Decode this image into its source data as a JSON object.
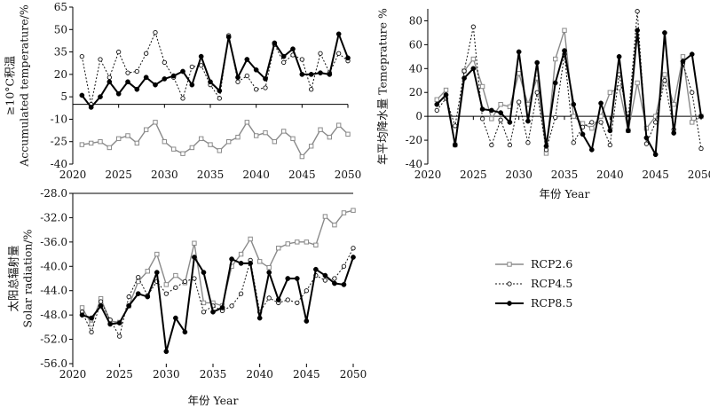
{
  "chart_data": [
    {
      "id": "accumulated_temperature",
      "type": "line",
      "ylabel_lines": [
        "≥10°C积温",
        "Accumulated temperature/%"
      ],
      "xlabel": "",
      "xlim": [
        2020,
        2050
      ],
      "ylim": [
        -40,
        65
      ],
      "xticks": [
        2020,
        2025,
        2030,
        2035,
        2040,
        2045,
        2050
      ],
      "yticks": [
        -40,
        -25,
        -10,
        5,
        20,
        35,
        50,
        65
      ],
      "zero_line": 0,
      "grid": false,
      "x": [
        2021,
        2022,
        2023,
        2024,
        2025,
        2026,
        2027,
        2028,
        2029,
        2030,
        2031,
        2032,
        2033,
        2034,
        2035,
        2036,
        2037,
        2038,
        2039,
        2040,
        2041,
        2042,
        2043,
        2044,
        2045,
        2046,
        2047,
        2048,
        2049,
        2050
      ],
      "series": [
        {
          "name": "RCP2.6",
          "values": [
            -27,
            -26,
            -25,
            -29,
            -23,
            -21,
            -26,
            -17,
            -12,
            -25,
            -30,
            -33,
            -29,
            -23,
            -27,
            -31,
            -25,
            -22,
            -12,
            -21,
            -19,
            -25,
            -18,
            -23,
            -35,
            -28,
            -17,
            -22,
            -14,
            -20
          ]
        },
        {
          "name": "RCP4.5",
          "values": [
            32,
            0,
            30,
            18,
            35,
            21,
            22,
            34,
            48,
            28,
            18,
            4,
            25,
            26,
            13,
            4,
            46,
            15,
            19,
            10,
            11,
            40,
            28,
            33,
            30,
            10,
            34,
            21,
            34,
            29
          ]
        },
        {
          "name": "RCP8.5",
          "values": [
            6,
            -2,
            5,
            15,
            7,
            15,
            10,
            18,
            13,
            17,
            19,
            22,
            13,
            32,
            15,
            9,
            45,
            18,
            30,
            23,
            17,
            41,
            32,
            37,
            20,
            20,
            21,
            20,
            47,
            31
          ]
        }
      ]
    },
    {
      "id": "annual_precipitation",
      "type": "line",
      "ylabel_lines": [
        "年平均降水量  Temeprature %"
      ],
      "xlabel": "年份 Year",
      "xlim": [
        2020,
        2050
      ],
      "ylim": [
        -40,
        90
      ],
      "xticks": [
        2020,
        2025,
        2030,
        2035,
        2040,
        2045,
        2050
      ],
      "yticks": [
        -40,
        -20,
        0,
        20,
        40,
        60,
        80
      ],
      "zero_line": 0,
      "grid": false,
      "x": [
        2021,
        2022,
        2023,
        2024,
        2025,
        2026,
        2027,
        2028,
        2029,
        2030,
        2031,
        2032,
        2033,
        2034,
        2035,
        2036,
        2037,
        2038,
        2039,
        2040,
        2041,
        2042,
        2043,
        2044,
        2045,
        2046,
        2047,
        2048,
        2049,
        2050
      ],
      "series": [
        {
          "name": "RCP2.6",
          "values": [
            14,
            22,
            -24,
            38,
            48,
            25,
            -2,
            10,
            8,
            36,
            10,
            32,
            -31,
            48,
            72,
            0,
            -6,
            -10,
            0,
            20,
            24,
            -12,
            28,
            -10,
            0,
            35,
            10,
            50,
            -5,
            0
          ]
        },
        {
          "name": "RCP4.5",
          "values": [
            5,
            15,
            -8,
            38,
            75,
            -2,
            -24,
            -3,
            -24,
            12,
            -22,
            20,
            -28,
            -1,
            52,
            -22,
            -9,
            -5,
            -5,
            -24,
            35,
            -2,
            88,
            -23,
            -5,
            30,
            -11,
            44,
            20,
            -27
          ]
        },
        {
          "name": "RCP8.5",
          "values": [
            10,
            18,
            -24,
            32,
            40,
            6,
            5,
            3,
            -5,
            54,
            -4,
            45,
            -25,
            28,
            55,
            10,
            -15,
            -28,
            11,
            -12,
            50,
            -12,
            72,
            -18,
            -32,
            70,
            -14,
            46,
            52,
            0
          ]
        }
      ]
    },
    {
      "id": "solar_radiation",
      "type": "line",
      "ylabel_lines": [
        "太阳总辐射量",
        "Solar radiation/%"
      ],
      "xlabel": "年份 Year",
      "xlim": [
        2020,
        2050
      ],
      "ylim": [
        -56,
        -28
      ],
      "xticks": [
        2020,
        2025,
        2030,
        2035,
        2040,
        2045,
        2050
      ],
      "yticks": [
        -56.0,
        -52.0,
        -48.0,
        -44.0,
        -40.0,
        -36.0,
        -32.0,
        -28.0
      ],
      "ytick_labels": [
        "-56.0",
        "-52.0",
        "-48.0",
        "-44.0",
        "-40.0",
        "-36.0",
        "-32.0",
        "-28.0"
      ],
      "grid": false,
      "x": [
        2021,
        2022,
        2023,
        2024,
        2025,
        2026,
        2027,
        2028,
        2029,
        2030,
        2031,
        2032,
        2033,
        2034,
        2035,
        2036,
        2037,
        2038,
        2039,
        2040,
        2041,
        2042,
        2043,
        2044,
        2045,
        2046,
        2047,
        2048,
        2049,
        2050
      ],
      "series": [
        {
          "name": "RCP2.6",
          "values": [
            -46.8,
            -49.5,
            -45.3,
            -49.0,
            -49.2,
            -46.5,
            -42.5,
            -40.8,
            -38.0,
            -43.0,
            -41.5,
            -42.7,
            -36.2,
            -46.0,
            -46.0,
            -46.5,
            -40.0,
            -38.0,
            -35.5,
            -39.2,
            -40.2,
            -37.0,
            -36.3,
            -36.0,
            -36.0,
            -36.5,
            -31.8,
            -33.2,
            -31.2,
            -30.8
          ]
        },
        {
          "name": "RCP4.5",
          "values": [
            -47.5,
            -50.8,
            -45.8,
            -48.8,
            -51.5,
            -45.0,
            -41.8,
            -44.8,
            -42.5,
            -44.5,
            -43.5,
            -42.5,
            -42.0,
            -47.5,
            -46.5,
            -47.3,
            -46.5,
            -44.5,
            -39.0,
            -47.5,
            -45.2,
            -46.0,
            -45.5,
            -46.0,
            -44.0,
            -41.5,
            -42.3,
            -42.0,
            -40.0,
            -37.0
          ]
        },
        {
          "name": "RCP8.5",
          "values": [
            -48.0,
            -48.5,
            -46.5,
            -49.5,
            -49.3,
            -46.5,
            -44.5,
            -45.0,
            -41.0,
            -54.0,
            -48.5,
            -50.8,
            -38.5,
            -41.0,
            -47.5,
            -46.8,
            -38.8,
            -39.5,
            -39.5,
            -48.5,
            -41.0,
            -45.5,
            -42.0,
            -42.0,
            -49.0,
            -40.5,
            -41.5,
            -42.8,
            -43.0,
            -38.5
          ]
        }
      ]
    }
  ],
  "legend": {
    "entries": [
      {
        "label": "RCP2.6",
        "marker": "square-open",
        "dash": "solid",
        "color": "#888888"
      },
      {
        "label": "RCP4.5",
        "marker": "circle-open",
        "dash": "dotted",
        "color": "#111111"
      },
      {
        "label": "RCP8.5",
        "marker": "circle-filled",
        "dash": "solid",
        "color": "#000000"
      }
    ]
  }
}
